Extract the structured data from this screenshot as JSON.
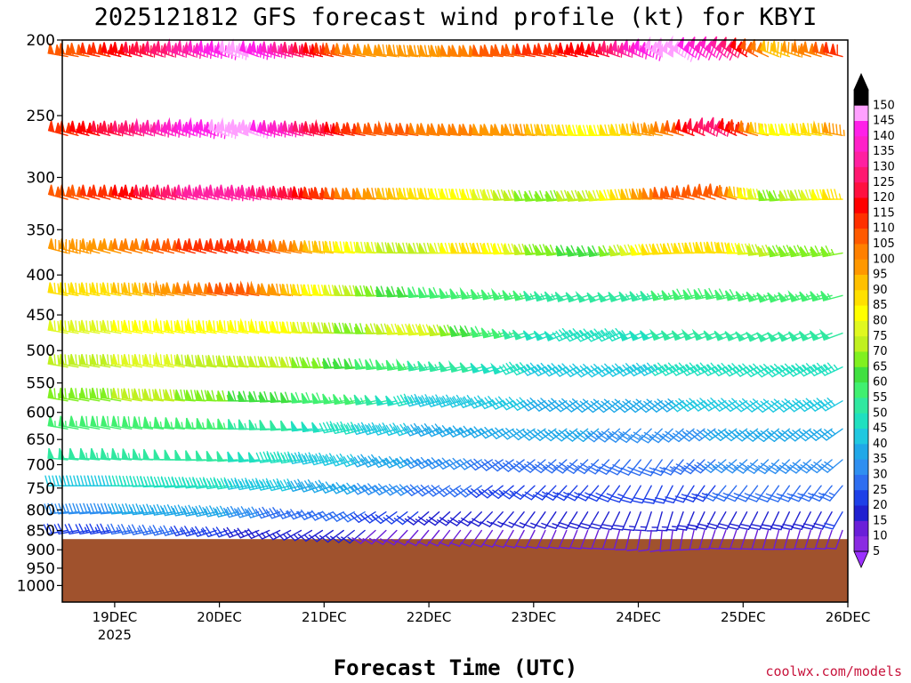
{
  "chart_data": {
    "type": "wind-barbs",
    "title": "2025121812 GFS forecast wind profile (kt) for KBYI",
    "xlabel": "Forecast Time (UTC)",
    "credit": "coolwx.com/models",
    "x_start": "2025-12-18T12Z",
    "x_end": "2025-12-26T00Z",
    "x_ticks": [
      {
        "date": "2025-12-19T00Z",
        "label": "19DEC",
        "sublabel": "2025"
      },
      {
        "date": "2025-12-20T00Z",
        "label": "20DEC",
        "sublabel": ""
      },
      {
        "date": "2025-12-21T00Z",
        "label": "21DEC",
        "sublabel": ""
      },
      {
        "date": "2025-12-22T00Z",
        "label": "22DEC",
        "sublabel": ""
      },
      {
        "date": "2025-12-23T00Z",
        "label": "23DEC",
        "sublabel": ""
      },
      {
        "date": "2025-12-24T00Z",
        "label": "24DEC",
        "sublabel": ""
      },
      {
        "date": "2025-12-25T00Z",
        "label": "25DEC",
        "sublabel": ""
      },
      {
        "date": "2025-12-26T00Z",
        "label": "26DEC",
        "sublabel": ""
      }
    ],
    "y_axis": {
      "scale": "log",
      "inverted": true,
      "range": [
        1050,
        200
      ],
      "unit": "hPa"
    },
    "y_ticks": [
      {
        "value": 200,
        "label": "200"
      },
      {
        "value": 250,
        "label": "250"
      },
      {
        "value": 300,
        "label": "300"
      },
      {
        "value": 350,
        "label": "350"
      },
      {
        "value": 400,
        "label": "400"
      },
      {
        "value": 450,
        "label": "450"
      },
      {
        "value": 500,
        "label": "500"
      },
      {
        "value": 550,
        "label": "550"
      },
      {
        "value": 600,
        "label": "600"
      },
      {
        "value": 650,
        "label": "650"
      },
      {
        "value": 700,
        "label": "700"
      },
      {
        "value": 750,
        "label": "750"
      },
      {
        "value": 800,
        "label": "800"
      },
      {
        "value": 850,
        "label": "850"
      },
      {
        "value": 900,
        "label": "900"
      },
      {
        "value": 950,
        "label": "950"
      },
      {
        "value": 1000,
        "label": "1000"
      }
    ],
    "surface_pressure_hpa": 872,
    "terrain_color": "#a0522d",
    "colorbar": {
      "labels": [
        "5",
        "10",
        "15",
        "20",
        "25",
        "30",
        "35",
        "40",
        "45",
        "50",
        "55",
        "60",
        "65",
        "70",
        "75",
        "80",
        "85",
        "90",
        "95",
        "100",
        "105",
        "110",
        "115",
        "120",
        "125",
        "130",
        "135",
        "140",
        "145",
        "150"
      ],
      "colors": [
        "#8a2be2",
        "#6a1fd8",
        "#2020d0",
        "#1e40e8",
        "#2e6ef0",
        "#2f8ff0",
        "#20a8e8",
        "#20c8e0",
        "#20e0c0",
        "#30e8a0",
        "#40f070",
        "#40e040",
        "#80f020",
        "#c0f020",
        "#e0f820",
        "#ffff00",
        "#ffe000",
        "#ffc000",
        "#ff9800",
        "#ff8000",
        "#ff5a00",
        "#ff3000",
        "#ff0000",
        "#ff1040",
        "#ff1870",
        "#ff20a0",
        "#ff20c8",
        "#ff20e8",
        "#ffa0ff",
        "#000000"
      ]
    },
    "wind_levels": [
      {
        "p": 210,
        "speed": [
          105,
          118,
          132,
          150,
          125,
          100,
          95,
          105,
          112,
          118,
          150,
          135,
          90,
          112
        ],
        "dir": [
          280,
          285,
          290,
          290,
          285,
          280,
          275,
          275,
          280,
          285,
          300,
          310,
          290,
          285
        ]
      },
      {
        "p": 265,
        "speed": [
          112,
          125,
          140,
          150,
          130,
          110,
          105,
          100,
          95,
          80,
          100,
          130,
          80,
          95
        ],
        "dir": [
          285,
          285,
          290,
          290,
          285,
          280,
          278,
          275,
          275,
          270,
          280,
          300,
          275,
          280
        ]
      },
      {
        "p": 320,
        "speed": [
          105,
          115,
          130,
          135,
          120,
          100,
          88,
          80,
          65,
          75,
          105,
          110,
          65,
          85
        ],
        "dir": [
          285,
          285,
          285,
          285,
          280,
          275,
          275,
          270,
          265,
          265,
          275,
          290,
          265,
          270
        ]
      },
      {
        "p": 375,
        "speed": [
          95,
          100,
          110,
          115,
          100,
          80,
          70,
          90,
          70,
          60,
          88,
          90,
          70,
          65
        ],
        "dir": [
          285,
          285,
          285,
          285,
          280,
          275,
          270,
          270,
          265,
          260,
          265,
          275,
          260,
          260
        ]
      },
      {
        "p": 425,
        "speed": [
          85,
          90,
          100,
          110,
          90,
          70,
          60,
          55,
          55,
          50,
          55,
          60,
          55,
          55
        ],
        "dir": [
          280,
          280,
          280,
          280,
          275,
          270,
          265,
          260,
          255,
          250,
          255,
          260,
          250,
          255
        ]
      },
      {
        "p": 475,
        "speed": [
          75,
          80,
          85,
          80,
          80,
          65,
          80,
          60,
          50,
          45,
          50,
          50,
          50,
          50
        ],
        "dir": [
          280,
          280,
          280,
          280,
          275,
          270,
          265,
          260,
          250,
          245,
          250,
          250,
          245,
          250
        ]
      },
      {
        "p": 525,
        "speed": [
          70,
          75,
          75,
          72,
          70,
          60,
          55,
          50,
          45,
          40,
          45,
          45,
          45,
          45
        ],
        "dir": [
          280,
          280,
          280,
          275,
          270,
          265,
          260,
          255,
          245,
          240,
          245,
          245,
          240,
          245
        ]
      },
      {
        "p": 580,
        "speed": [
          65,
          70,
          70,
          65,
          60,
          55,
          45,
          42,
          40,
          38,
          38,
          42,
          40,
          40
        ],
        "dir": [
          280,
          280,
          275,
          270,
          265,
          260,
          255,
          250,
          240,
          235,
          235,
          240,
          235,
          240
        ]
      },
      {
        "p": 630,
        "speed": [
          55,
          60,
          55,
          55,
          50,
          45,
          40,
          35,
          35,
          35,
          30,
          35,
          35,
          35
        ],
        "dir": [
          280,
          280,
          275,
          270,
          265,
          255,
          250,
          245,
          235,
          230,
          225,
          235,
          230,
          235
        ]
      },
      {
        "p": 690,
        "speed": [
          50,
          55,
          50,
          50,
          45,
          40,
          35,
          30,
          28,
          30,
          25,
          30,
          30,
          30
        ],
        "dir": [
          275,
          275,
          270,
          265,
          260,
          250,
          245,
          240,
          230,
          225,
          215,
          230,
          225,
          230
        ]
      },
      {
        "p": 745,
        "speed": [
          40,
          45,
          45,
          45,
          40,
          35,
          30,
          25,
          22,
          25,
          20,
          25,
          25,
          25
        ],
        "dir": [
          270,
          270,
          265,
          260,
          255,
          245,
          240,
          235,
          225,
          220,
          205,
          220,
          215,
          220
        ]
      },
      {
        "p": 805,
        "speed": [
          30,
          35,
          35,
          35,
          25,
          25,
          20,
          18,
          15,
          20,
          15,
          20,
          18,
          20
        ],
        "dir": [
          265,
          265,
          260,
          255,
          250,
          240,
          230,
          225,
          215,
          210,
          195,
          210,
          205,
          210
        ]
      },
      {
        "p": 850,
        "speed": [
          20,
          25,
          25,
          20,
          15,
          15,
          12,
          10,
          10,
          12,
          10,
          12,
          10,
          12
        ],
        "dir": [
          260,
          260,
          255,
          250,
          240,
          230,
          220,
          215,
          205,
          200,
          185,
          200,
          195,
          200
        ]
      }
    ]
  }
}
